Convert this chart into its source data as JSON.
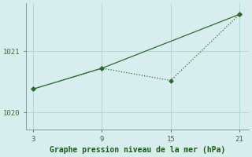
{
  "line1_x": [
    3,
    9,
    21
  ],
  "line1_y": [
    1020.38,
    1020.72,
    1021.6
  ],
  "line2_x": [
    3,
    9,
    15,
    21
  ],
  "line2_y": [
    1020.38,
    1020.72,
    1020.52,
    1021.6
  ],
  "line_color": "#2d6a2d",
  "bg_color": "#d8eeee",
  "grid_color": "#b0d8d8",
  "xlabel": "Graphe pression niveau de la mer (hPa)",
  "xlabel_color": "#1a5c1a",
  "xticks": [
    3,
    9,
    15,
    21
  ],
  "yticks": [
    1020,
    1021
  ],
  "xlim": [
    2.4,
    21.8
  ],
  "ylim": [
    1019.72,
    1021.78
  ],
  "tick_color": "#3a6b3a",
  "spine_color": "#888888"
}
